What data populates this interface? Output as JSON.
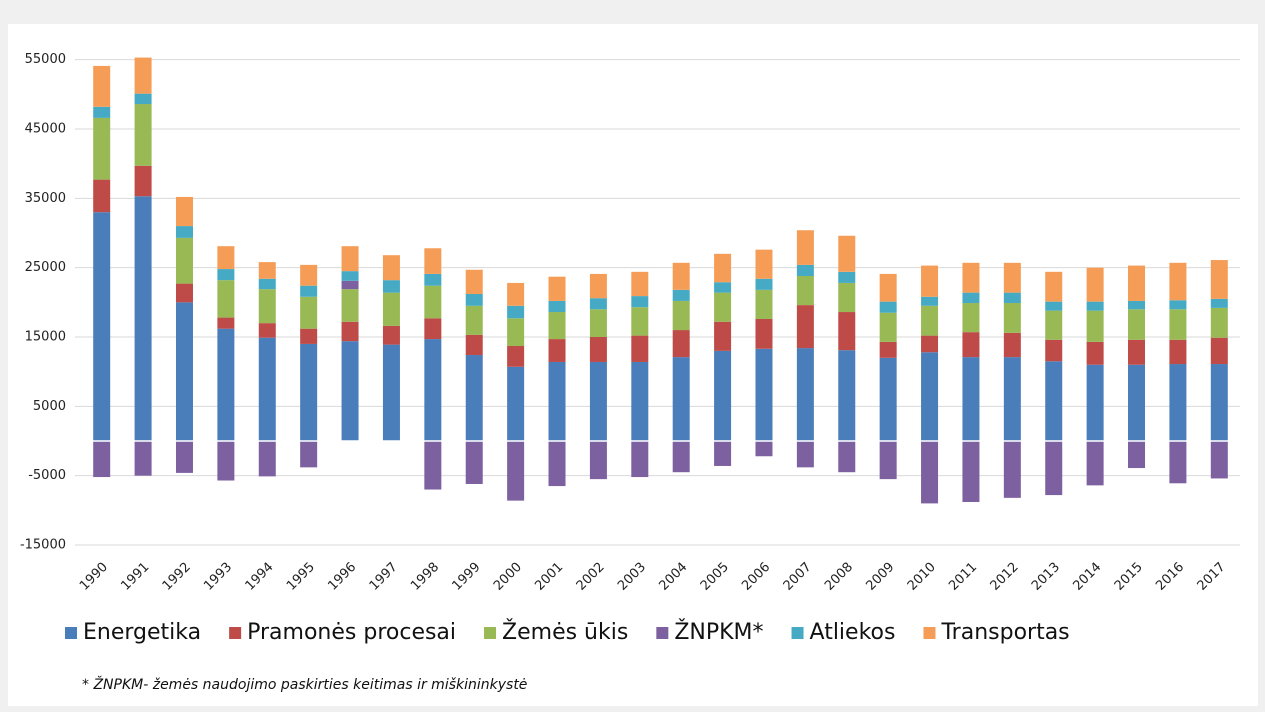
{
  "chart_data": {
    "type": "stacked_bar",
    "categories": [
      "1990",
      "1991",
      "1992",
      "1993",
      "1994",
      "1995",
      "1996",
      "1997",
      "1998",
      "1999",
      "2000",
      "2001",
      "2002",
      "2003",
      "2004",
      "2005",
      "2006",
      "2007",
      "2008",
      "2009",
      "2010",
      "2011",
      "2012",
      "2013",
      "2014",
      "2015",
      "2016",
      "2017"
    ],
    "series": [
      {
        "name": "Energetika",
        "color": "#4a7ebb",
        "values": [
          33000,
          35300,
          20000,
          16200,
          14900,
          14000,
          14400,
          13900,
          14700,
          12400,
          10700,
          11400,
          11400,
          11400,
          12100,
          13000,
          13300,
          13400,
          13100,
          12000,
          12800,
          12100,
          12100,
          11500,
          11000,
          11000,
          11100,
          11100
        ]
      },
      {
        "name": "Pramonės procesai",
        "color": "#be4b48",
        "values": [
          4700,
          4400,
          2700,
          1600,
          2100,
          2200,
          2800,
          2700,
          3000,
          2900,
          3000,
          3300,
          3600,
          3800,
          3900,
          4200,
          4300,
          6200,
          5500,
          2300,
          2400,
          3600,
          3500,
          3100,
          3300,
          3600,
          3500,
          3800
        ]
      },
      {
        "name": "Žemės ūkis",
        "color": "#98b954",
        "values": [
          8900,
          8900,
          6600,
          5400,
          4900,
          4600,
          4700,
          4800,
          4700,
          4200,
          4000,
          3900,
          4000,
          4100,
          4200,
          4200,
          4200,
          4200,
          4200,
          4200,
          4300,
          4200,
          4300,
          4200,
          4500,
          4400,
          4400,
          4300
        ]
      },
      {
        "name": "ŽNPKM*",
        "color": "#7d60a0",
        "values": [
          -5200,
          -5000,
          -4600,
          -5700,
          -5100,
          -3800,
          1200,
          0,
          -7000,
          -6200,
          -8600,
          -6500,
          -5500,
          -5200,
          -4500,
          -3600,
          -2200,
          -3800,
          -4500,
          -5500,
          -9000,
          -8800,
          -8200,
          -7800,
          -6400,
          -3900,
          -6100,
          -5400
        ]
      },
      {
        "name": "Atliekos",
        "color": "#46aac5",
        "values": [
          1600,
          1500,
          1700,
          1600,
          1500,
          1600,
          1400,
          1800,
          1700,
          1700,
          1800,
          1600,
          1600,
          1600,
          1600,
          1500,
          1600,
          1600,
          1600,
          1600,
          1300,
          1500,
          1500,
          1300,
          1300,
          1200,
          1300,
          1300
        ]
      },
      {
        "name": "Transportas",
        "color": "#f59d56",
        "values": [
          5900,
          5200,
          4200,
          3300,
          2400,
          3000,
          3600,
          3600,
          3700,
          3500,
          3300,
          3500,
          3500,
          3500,
          3900,
          4100,
          4200,
          5000,
          5200,
          4000,
          4500,
          4300,
          4300,
          4300,
          4900,
          5100,
          5400,
          5600
        ]
      }
    ],
    "ylim": [
      -15000,
      60000
    ],
    "yticks": [
      -15000,
      -5000,
      5000,
      15000,
      25000,
      35000,
      45000,
      55000
    ],
    "grid": true,
    "note": "* ŽNPKM- žemės naudojimo paskirties keitimas ir miškininkystė"
  }
}
